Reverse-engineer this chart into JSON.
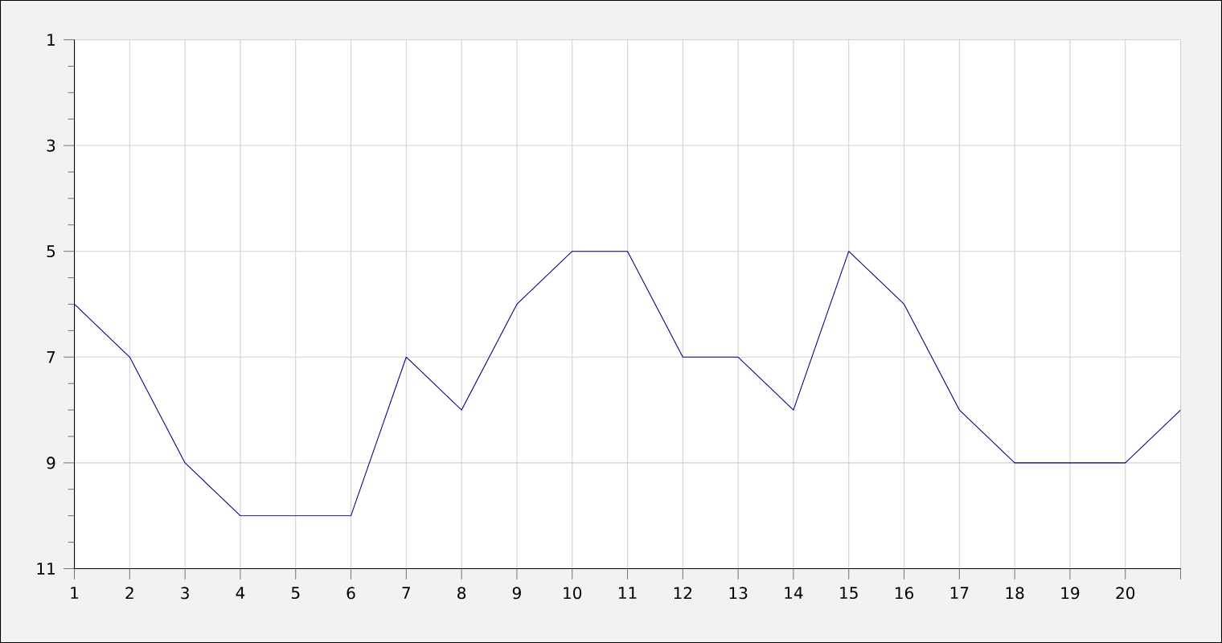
{
  "chart_data": {
    "type": "line",
    "x": [
      1,
      2,
      3,
      4,
      5,
      6,
      7,
      8,
      9,
      10,
      11,
      12,
      13,
      14,
      15,
      16,
      17,
      18,
      19,
      20,
      21
    ],
    "values": [
      6,
      7,
      9,
      10,
      10,
      10,
      7,
      8,
      6,
      5,
      5,
      7,
      7,
      8,
      5,
      6,
      8,
      9,
      9,
      9,
      8
    ],
    "color": "#000080",
    "xlim": [
      1,
      21
    ],
    "ylim": [
      11,
      1
    ],
    "xticks": [
      1,
      2,
      3,
      4,
      5,
      6,
      7,
      8,
      9,
      10,
      11,
      12,
      13,
      14,
      15,
      16,
      17,
      18,
      19,
      20,
      {
        "value": 21,
        "label": null
      }
    ],
    "yticks": [
      1,
      3,
      5,
      7,
      9,
      11
    ],
    "grid": true,
    "marker": "none",
    "line_style": "solid"
  }
}
